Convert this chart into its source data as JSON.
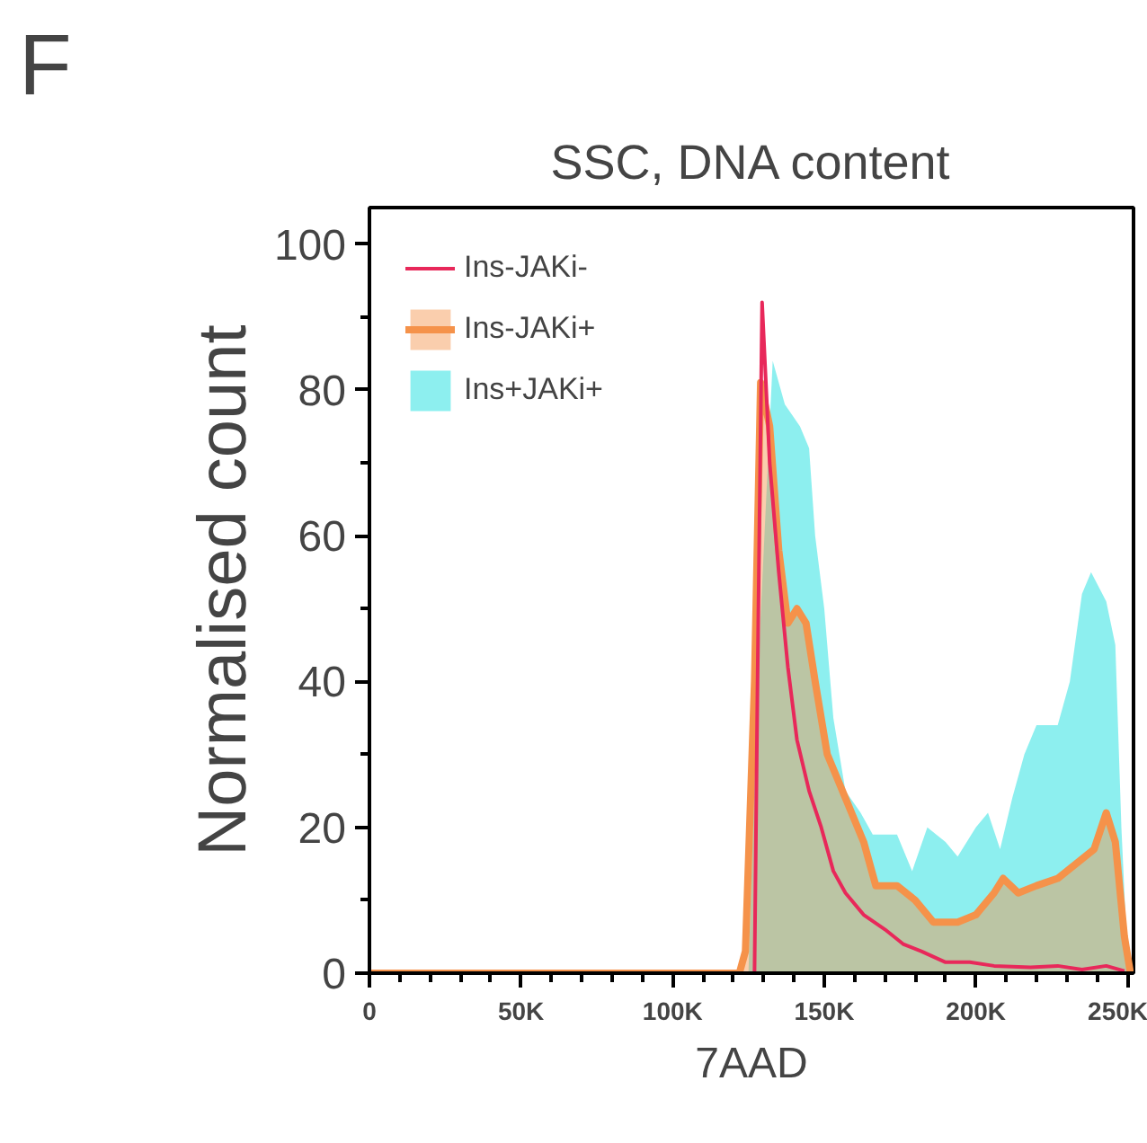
{
  "chart_data": {
    "type": "area",
    "title": "SSC, DNA content",
    "xlabel": "7AAD",
    "ylabel": "Normalised count",
    "annotations": [
      "F"
    ],
    "xlim": [
      0,
      252000
    ],
    "ylim": [
      0,
      105
    ],
    "xticks": [
      {
        "value": 0,
        "label": "0"
      },
      {
        "value": 50000,
        "label": "50K"
      },
      {
        "value": 100000,
        "label": "100K"
      },
      {
        "value": 150000,
        "label": "150K"
      },
      {
        "value": 200000,
        "label": "200K"
      },
      {
        "value": 250000,
        "label": "250K"
      }
    ],
    "yticks": [
      0,
      20,
      40,
      60,
      80,
      100
    ],
    "legend": "top left",
    "grid": false,
    "series": [
      {
        "name": "Ins+JAKi+",
        "type": "area",
        "color": "#5ce8e8",
        "x": [
          0,
          125000,
          128000,
          133000,
          137000,
          142000,
          145000,
          147000,
          150000,
          153000,
          157000,
          162000,
          166000,
          174000,
          179000,
          184000,
          190000,
          194000,
          200000,
          204000,
          208000,
          212000,
          216000,
          220000,
          227000,
          231000,
          235000,
          238000,
          243000,
          246000,
          248000,
          250000
        ],
        "values": [
          0,
          0,
          40,
          84,
          78,
          75,
          72,
          60,
          50,
          35,
          25,
          22,
          19,
          19,
          14,
          20,
          18,
          16,
          20,
          22,
          17,
          24,
          30,
          34,
          34,
          40,
          52,
          55,
          51,
          45,
          20,
          2
        ]
      },
      {
        "name": "Ins-JAKi+",
        "type": "area",
        "color": "#f5924a",
        "x": [
          0,
          122000,
          124000,
          127000,
          129000,
          132000,
          135000,
          138000,
          141000,
          144000,
          147000,
          151000,
          157000,
          163000,
          167000,
          174000,
          180000,
          186000,
          194000,
          200000,
          206000,
          209000,
          214000,
          220000,
          227000,
          233000,
          239000,
          243000,
          246000,
          249000,
          251000
        ],
        "values": [
          0,
          0,
          3,
          40,
          81,
          75,
          58,
          48,
          50,
          48,
          40,
          30,
          24,
          18,
          12,
          12,
          10,
          7,
          7,
          8,
          11,
          13,
          11,
          12,
          13,
          15,
          17,
          22,
          18,
          5,
          0
        ]
      },
      {
        "name": "Ins-JAKi-",
        "type": "line",
        "color": "#e8285a",
        "x": [
          0,
          127000,
          128000,
          129500,
          132000,
          135000,
          138000,
          141000,
          145000,
          149000,
          153000,
          157000,
          163000,
          170000,
          176000,
          182000,
          190000,
          198000,
          206000,
          218000,
          227000,
          235000,
          243000,
          249000
        ],
        "values": [
          0,
          0,
          40,
          92,
          70,
          55,
          42,
          32,
          25,
          20,
          14,
          11,
          8,
          6,
          4,
          3,
          1.5,
          1.5,
          1,
          0.8,
          1,
          0.5,
          1,
          0.3
        ]
      }
    ]
  }
}
